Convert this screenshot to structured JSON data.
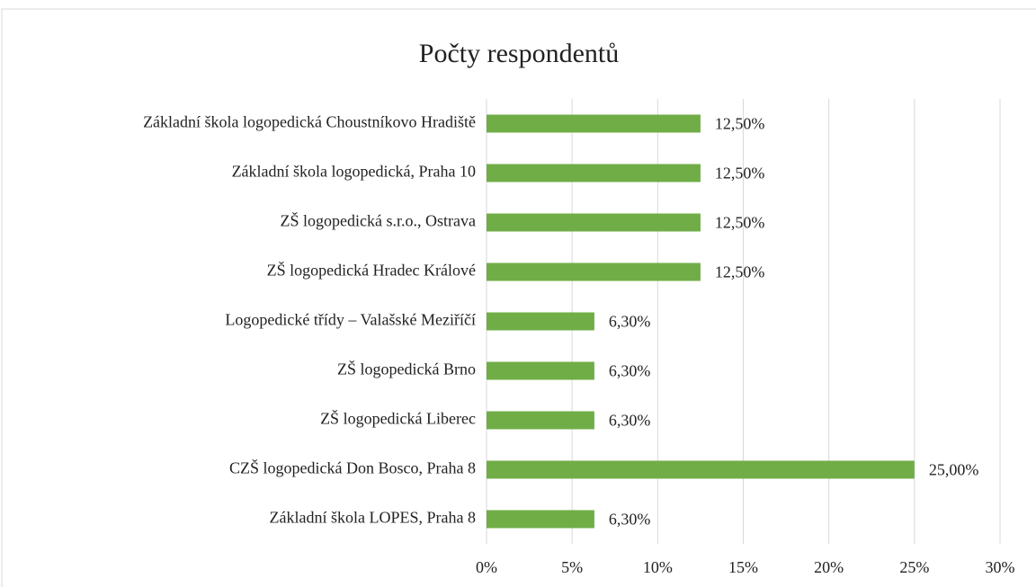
{
  "chart_data": {
    "type": "bar",
    "orientation": "horizontal",
    "title": "Počty respondentů",
    "categories": [
      "Základní škola logopedická Choustníkovo Hradiště",
      "Základní škola logopedická, Praha 10",
      "ZŠ logopedická s.r.o., Ostrava",
      "ZŠ logopedická Hradec Králové",
      "Logopedické třídy – Valašské Meziříčí",
      "ZŠ logopedická Brno",
      "ZŠ logopedická Liberec",
      "CZŠ logopedická Don Bosco, Praha 8",
      "Základní škola LOPES, Praha 8"
    ],
    "values": [
      12.5,
      12.5,
      12.5,
      12.5,
      6.3,
      6.3,
      6.3,
      25,
      6.3
    ],
    "value_labels": [
      "12,50%",
      "12,50%",
      "12,50%",
      "12,50%",
      "6,30%",
      "6,30%",
      "6,30%",
      "25,00%",
      "6,30%"
    ],
    "color": "#70ad47",
    "xlim": [
      0,
      30
    ],
    "xticks": [
      {
        "value": 0,
        "label": "0%"
      },
      {
        "value": 5,
        "label": "5%"
      },
      {
        "value": 10,
        "label": "10%"
      },
      {
        "value": 15,
        "label": "15%"
      },
      {
        "value": 20,
        "label": "20%"
      },
      {
        "value": 25,
        "label": "25%"
      },
      {
        "value": 30,
        "label": "30%"
      }
    ],
    "grid": true
  }
}
